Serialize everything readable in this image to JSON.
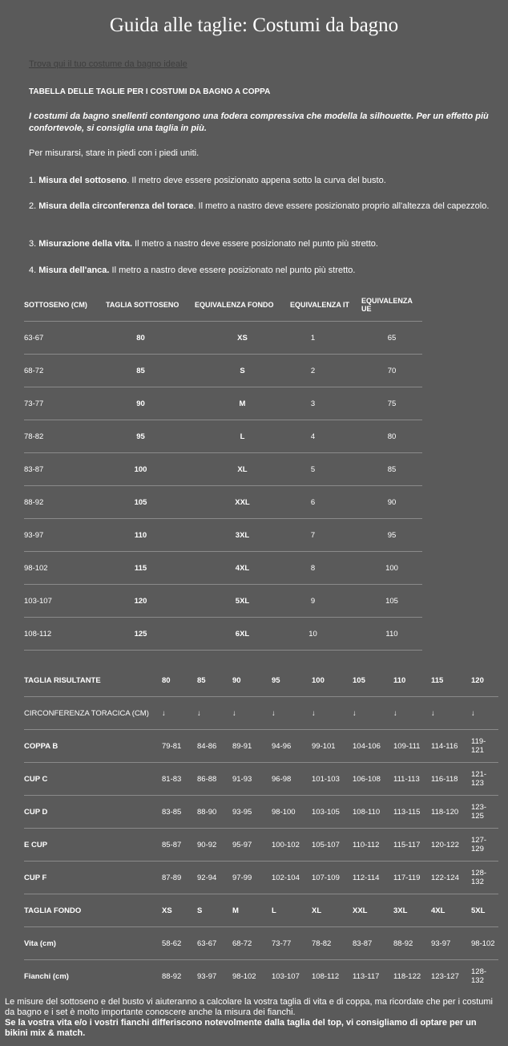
{
  "title": "Guida alle taglie: Costumi da bagno",
  "link": "Trova qui il tuo costume da bagno ideale",
  "heading": "TABELLA DELLE TAGLIE PER I COSTUMI DA BAGNO A COPPA",
  "intro_italic": "I costumi da bagno snellenti contengono una fodera compressiva che modella la silhouette. Per un effetto più confortevole, si consiglia una taglia in più.",
  "stand": "Per misurarsi, stare in piedi con i piedi uniti.",
  "steps": [
    {
      "num": "1.",
      "bold": "Misura del sottoseno",
      "text": ". Il metro deve essere posizionato appena sotto la curva del busto."
    },
    {
      "num": "2.",
      "bold": "Misura della circonferenza del torace",
      "text": ". Il metro a nastro deve essere posizionato proprio all'altezza del capezzolo."
    },
    {
      "num": "3.",
      "bold": "Misurazione della vita.",
      "text": " Il metro a nastro deve essere posizionato nel punto più stretto."
    },
    {
      "num": "4.",
      "bold": "Misura dell'anca.",
      "text": " Il metro a nastro deve essere posizionato nel punto più stretto."
    }
  ],
  "table1": {
    "headers": [
      "SOTTOSENO (CM)",
      "TAGLIA SOTTOSENO",
      "EQUIVALENZA FONDO",
      "EQUIVALENZA IT",
      "EQUIVALENZA UE"
    ],
    "rows": [
      [
        "63-67",
        "80",
        "XS",
        "1",
        "65"
      ],
      [
        "68-72",
        "85",
        "S",
        "2",
        "70"
      ],
      [
        "73-77",
        "90",
        "M",
        "3",
        "75"
      ],
      [
        "78-82",
        "95",
        "L",
        "4",
        "80"
      ],
      [
        "83-87",
        "100",
        "XL",
        "5",
        "85"
      ],
      [
        "88-92",
        "105",
        "XXL",
        "6",
        "90"
      ],
      [
        "93-97",
        "110",
        "3XL",
        "7",
        "95"
      ],
      [
        "98-102",
        "115",
        "4XL",
        "8",
        "100"
      ],
      [
        "103-107",
        "120",
        "5XL",
        "9",
        "105"
      ],
      [
        "108-112",
        "125",
        "6XL",
        "10",
        "110"
      ]
    ]
  },
  "table2": {
    "rows": [
      {
        "label": "TAGLIA RISULTANTE",
        "values": [
          "80",
          "85",
          "90",
          "95",
          "100",
          "105",
          "110",
          "115",
          "120"
        ],
        "style": "hdr"
      },
      {
        "label": "CIRCONFERENZA TORACICA (CM)",
        "values": [
          "↓",
          "↓",
          "↓",
          "↓",
          "↓",
          "↓",
          "↓",
          "↓",
          "↓"
        ],
        "style": "norm"
      },
      {
        "label": "COPPA B",
        "values": [
          "79-81",
          "84-86",
          "89-91",
          "94-96",
          "99-101",
          "104-106",
          "109-111",
          "114-116",
          "119-121"
        ]
      },
      {
        "label": "CUP C",
        "values": [
          "81-83",
          "86-88",
          "91-93",
          "96-98",
          "101-103",
          "106-108",
          "111-113",
          "116-118",
          "121-123"
        ]
      },
      {
        "label": "CUP D",
        "values": [
          "83-85",
          "88-90",
          "93-95",
          "98-100",
          "103-105",
          "108-110",
          "113-115",
          "118-120",
          "123-125"
        ]
      },
      {
        "label": "E CUP",
        "values": [
          "85-87",
          "90-92",
          "95-97",
          "100-102",
          "105-107",
          "110-112",
          "115-117",
          "120-122",
          "127-129"
        ]
      },
      {
        "label": "CUP F",
        "values": [
          "87-89",
          "92-94",
          "97-99",
          "102-104",
          "107-109",
          "112-114",
          "117-119",
          "122-124",
          "128-132"
        ]
      },
      {
        "label": "TAGLIA FONDO",
        "values": [
          "XS",
          "S",
          "M",
          "L",
          "XL",
          "XXL",
          "3XL",
          "4XL",
          "5XL"
        ],
        "style": "hdr"
      },
      {
        "label": "Vita (cm)",
        "values": [
          "58-62",
          "63-67",
          "68-72",
          "73-77",
          "78-82",
          "83-87",
          "88-92",
          "93-97",
          "98-102"
        ]
      },
      {
        "label": "Fianchi (cm)",
        "values": [
          "88-92",
          "93-97",
          "98-102",
          "103-107",
          "108-112",
          "113-117",
          "118-122",
          "123-127",
          "128-132"
        ]
      }
    ]
  },
  "footer": {
    "normal": "Le misure del sottoseno e del busto vi aiuteranno a calcolare la vostra taglia di vita e di coppa, ma ricordate che per i costumi da bagno e i set è molto importante conoscere anche la misura dei fianchi.",
    "bold": "Se la vostra vita e/o i vostri fianchi differiscono notevolmente dalla taglia del top, vi consigliamo di optare per un bikini mix & match."
  }
}
